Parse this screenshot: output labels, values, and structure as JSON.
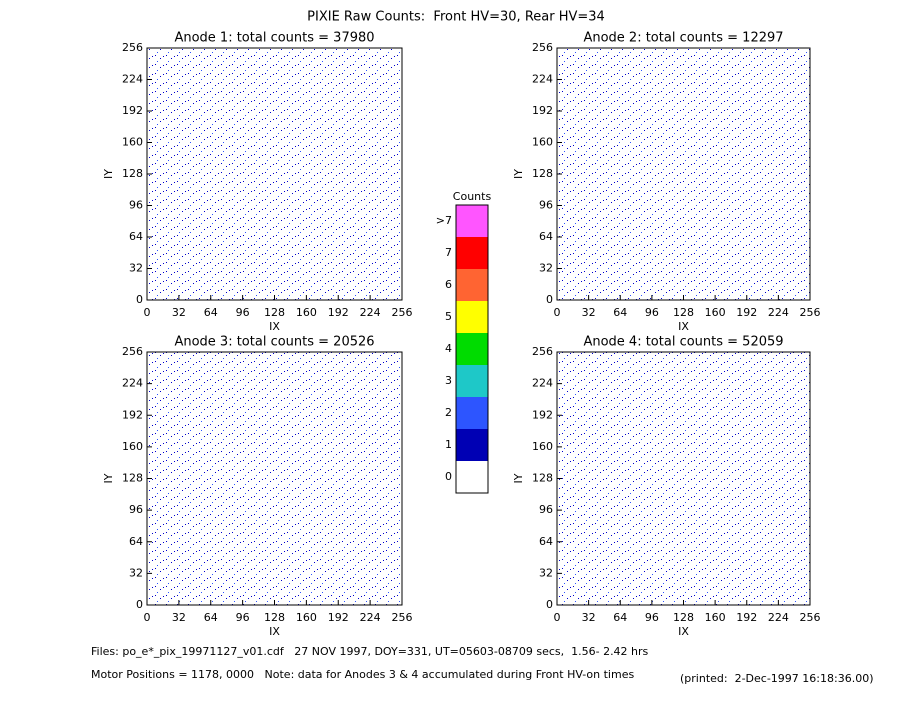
{
  "title": "PIXIE Raw Counts:  Front HV=30, Rear HV=34",
  "chart_data": [
    {
      "type": "heatmap",
      "title": "Anode 1: total counts = 37980",
      "xlabel": "IX",
      "ylabel": "IY",
      "xlim": [
        0,
        256
      ],
      "ylim": [
        0,
        256
      ],
      "xticks": [
        0,
        32,
        64,
        96,
        128,
        160,
        192,
        224,
        256
      ],
      "yticks": [
        0,
        32,
        64,
        96,
        128,
        160,
        192,
        224,
        256
      ]
    },
    {
      "type": "heatmap",
      "title": "Anode 2: total counts = 12297",
      "xlabel": "IX",
      "ylabel": "IY",
      "xlim": [
        0,
        256
      ],
      "ylim": [
        0,
        256
      ],
      "xticks": [
        0,
        32,
        64,
        96,
        128,
        160,
        192,
        224,
        256
      ],
      "yticks": [
        0,
        32,
        64,
        96,
        128,
        160,
        192,
        224,
        256
      ]
    },
    {
      "type": "heatmap",
      "title": "Anode 3: total counts = 20526",
      "xlabel": "IX",
      "ylabel": "IY",
      "xlim": [
        0,
        256
      ],
      "ylim": [
        0,
        256
      ],
      "xticks": [
        0,
        32,
        64,
        96,
        128,
        160,
        192,
        224,
        256
      ],
      "yticks": [
        0,
        32,
        64,
        96,
        128,
        160,
        192,
        224,
        256
      ]
    },
    {
      "type": "heatmap",
      "title": "Anode 4: total counts = 52059",
      "xlabel": "IX",
      "ylabel": "IY",
      "xlim": [
        0,
        256
      ],
      "ylim": [
        0,
        256
      ],
      "xticks": [
        0,
        32,
        64,
        96,
        128,
        160,
        192,
        224,
        256
      ],
      "yticks": [
        0,
        32,
        64,
        96,
        128,
        160,
        192,
        224,
        256
      ]
    }
  ],
  "colorbar": {
    "title": "Counts",
    "ticks": [
      0,
      1,
      2,
      3,
      4,
      5,
      6,
      7,
      {
        "value": 8,
        "label": ">7"
      }
    ],
    "colors": [
      "#ffffff",
      "#0000b4",
      "#2d55ff",
      "#1ec8c8",
      "#00dc00",
      "#ffff00",
      "#ff6432",
      "#ff0000",
      "#ff55ff"
    ]
  },
  "footer": {
    "files": "Files: po_e*_pix_19971127_v01.cdf   27 NOV 1997, DOY=331, UT=05603-08709 secs,  1.56- 2.42 hrs",
    "motor": "Motor Positions = 1178, 0000   Note: data for Anodes 3 & 4 accumulated during Front HV-on times",
    "printed": "(printed:  2-Dec-1997 16:18:36.00)"
  }
}
